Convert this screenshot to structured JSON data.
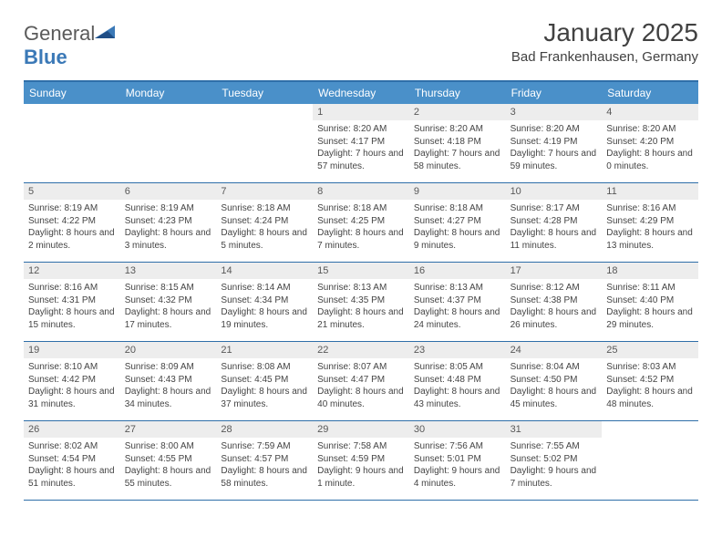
{
  "brand": {
    "word1": "General",
    "word2": "Blue"
  },
  "title": {
    "month": "January 2025",
    "location": "Bad Frankenhausen, Germany"
  },
  "colors": {
    "header_bar": "#4a90c9",
    "rule": "#2f6fa9",
    "daynum_bg": "#ededed",
    "text": "#333333",
    "brand_blue": "#3b79b7",
    "brand_gray": "#5a5a5a",
    "bg": "#ffffff"
  },
  "days_of_week": [
    "Sunday",
    "Monday",
    "Tuesday",
    "Wednesday",
    "Thursday",
    "Friday",
    "Saturday"
  ],
  "weeks": [
    [
      null,
      null,
      null,
      {
        "n": "1",
        "sr": "8:20 AM",
        "ss": "4:17 PM",
        "dl": "7 hours and 57 minutes."
      },
      {
        "n": "2",
        "sr": "8:20 AM",
        "ss": "4:18 PM",
        "dl": "7 hours and 58 minutes."
      },
      {
        "n": "3",
        "sr": "8:20 AM",
        "ss": "4:19 PM",
        "dl": "7 hours and 59 minutes."
      },
      {
        "n": "4",
        "sr": "8:20 AM",
        "ss": "4:20 PM",
        "dl": "8 hours and 0 minutes."
      }
    ],
    [
      {
        "n": "5",
        "sr": "8:19 AM",
        "ss": "4:22 PM",
        "dl": "8 hours and 2 minutes."
      },
      {
        "n": "6",
        "sr": "8:19 AM",
        "ss": "4:23 PM",
        "dl": "8 hours and 3 minutes."
      },
      {
        "n": "7",
        "sr": "8:18 AM",
        "ss": "4:24 PM",
        "dl": "8 hours and 5 minutes."
      },
      {
        "n": "8",
        "sr": "8:18 AM",
        "ss": "4:25 PM",
        "dl": "8 hours and 7 minutes."
      },
      {
        "n": "9",
        "sr": "8:18 AM",
        "ss": "4:27 PM",
        "dl": "8 hours and 9 minutes."
      },
      {
        "n": "10",
        "sr": "8:17 AM",
        "ss": "4:28 PM",
        "dl": "8 hours and 11 minutes."
      },
      {
        "n": "11",
        "sr": "8:16 AM",
        "ss": "4:29 PM",
        "dl": "8 hours and 13 minutes."
      }
    ],
    [
      {
        "n": "12",
        "sr": "8:16 AM",
        "ss": "4:31 PM",
        "dl": "8 hours and 15 minutes."
      },
      {
        "n": "13",
        "sr": "8:15 AM",
        "ss": "4:32 PM",
        "dl": "8 hours and 17 minutes."
      },
      {
        "n": "14",
        "sr": "8:14 AM",
        "ss": "4:34 PM",
        "dl": "8 hours and 19 minutes."
      },
      {
        "n": "15",
        "sr": "8:13 AM",
        "ss": "4:35 PM",
        "dl": "8 hours and 21 minutes."
      },
      {
        "n": "16",
        "sr": "8:13 AM",
        "ss": "4:37 PM",
        "dl": "8 hours and 24 minutes."
      },
      {
        "n": "17",
        "sr": "8:12 AM",
        "ss": "4:38 PM",
        "dl": "8 hours and 26 minutes."
      },
      {
        "n": "18",
        "sr": "8:11 AM",
        "ss": "4:40 PM",
        "dl": "8 hours and 29 minutes."
      }
    ],
    [
      {
        "n": "19",
        "sr": "8:10 AM",
        "ss": "4:42 PM",
        "dl": "8 hours and 31 minutes."
      },
      {
        "n": "20",
        "sr": "8:09 AM",
        "ss": "4:43 PM",
        "dl": "8 hours and 34 minutes."
      },
      {
        "n": "21",
        "sr": "8:08 AM",
        "ss": "4:45 PM",
        "dl": "8 hours and 37 minutes."
      },
      {
        "n": "22",
        "sr": "8:07 AM",
        "ss": "4:47 PM",
        "dl": "8 hours and 40 minutes."
      },
      {
        "n": "23",
        "sr": "8:05 AM",
        "ss": "4:48 PM",
        "dl": "8 hours and 43 minutes."
      },
      {
        "n": "24",
        "sr": "8:04 AM",
        "ss": "4:50 PM",
        "dl": "8 hours and 45 minutes."
      },
      {
        "n": "25",
        "sr": "8:03 AM",
        "ss": "4:52 PM",
        "dl": "8 hours and 48 minutes."
      }
    ],
    [
      {
        "n": "26",
        "sr": "8:02 AM",
        "ss": "4:54 PM",
        "dl": "8 hours and 51 minutes."
      },
      {
        "n": "27",
        "sr": "8:00 AM",
        "ss": "4:55 PM",
        "dl": "8 hours and 55 minutes."
      },
      {
        "n": "28",
        "sr": "7:59 AM",
        "ss": "4:57 PM",
        "dl": "8 hours and 58 minutes."
      },
      {
        "n": "29",
        "sr": "7:58 AM",
        "ss": "4:59 PM",
        "dl": "9 hours and 1 minute."
      },
      {
        "n": "30",
        "sr": "7:56 AM",
        "ss": "5:01 PM",
        "dl": "9 hours and 4 minutes."
      },
      {
        "n": "31",
        "sr": "7:55 AM",
        "ss": "5:02 PM",
        "dl": "9 hours and 7 minutes."
      },
      null
    ]
  ],
  "labels": {
    "sunrise": "Sunrise:",
    "sunset": "Sunset:",
    "daylight": "Daylight:"
  }
}
